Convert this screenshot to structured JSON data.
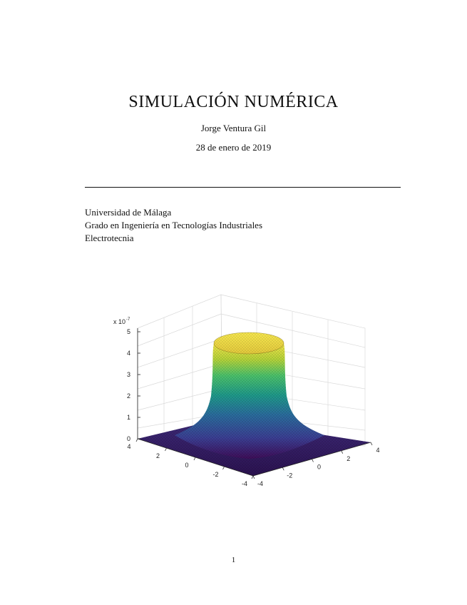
{
  "document": {
    "title": "SIMULACIÓN NUMÉRICA",
    "author": "Jorge Ventura Gil",
    "date": "28 de enero de 2019",
    "affiliation": [
      "Universidad de Málaga",
      "Grado en Ingeniería en Tecnologías Industriales",
      "Electrotecnia"
    ],
    "page_number": "1"
  },
  "figure": {
    "z_exponent_label": "x 10",
    "z_exponent_power": "-7",
    "z_ticks": [
      "0",
      "1",
      "2",
      "3",
      "4",
      "5"
    ],
    "y_ticks_left": [
      "4",
      "2",
      "0",
      "-2",
      "-4"
    ],
    "x_ticks_right": [
      "-4",
      "-2",
      "0",
      "2",
      "4"
    ],
    "colormap": [
      "#3e0e59",
      "#3b3f93",
      "#2a6d9d",
      "#1f9a8a",
      "#4cc26b",
      "#b6d43a",
      "#f5e64a"
    ]
  }
}
